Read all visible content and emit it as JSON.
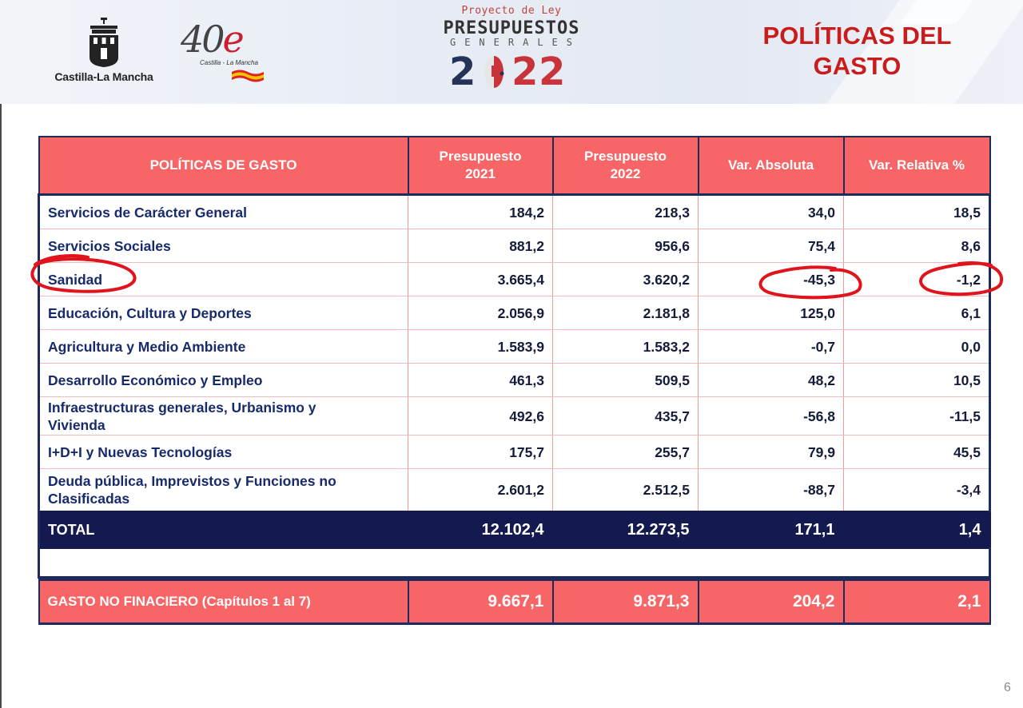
{
  "header": {
    "region_logo_text": "Castilla-La Mancha",
    "anniversary_logo": {
      "number": "40",
      "letter": "e",
      "subtitle": "Castilla - La Mancha"
    },
    "budget_logo": {
      "proyecto": "Proyecto de Ley",
      "title": "PRESUPUESTOS",
      "subtitle": "GENERALES",
      "year_digits": [
        "2",
        "2",
        "2"
      ]
    },
    "page_title_line1": "POLÍTICAS DEL",
    "page_title_line2": "GASTO"
  },
  "table": {
    "headers": {
      "col1": "POLÍTICAS DE GASTO",
      "col2_l1": "Presupuesto",
      "col2_l2": "2021",
      "col3_l1": "Presupuesto",
      "col3_l2": "2022",
      "col4": "Var. Absoluta",
      "col5": "Var. Relativa %"
    },
    "rows": [
      {
        "name": "Servicios de Carácter General",
        "p2021": "184,2",
        "p2022": "218,3",
        "abs": "34,0",
        "rel": "18,5"
      },
      {
        "name": "Servicios Sociales",
        "p2021": "881,2",
        "p2022": "956,6",
        "abs": "75,4",
        "rel": "8,6"
      },
      {
        "name": "Sanidad",
        "p2021": "3.665,4",
        "p2022": "3.620,2",
        "abs": "-45,3",
        "rel": "-1,2"
      },
      {
        "name": "Educación, Cultura y Deportes",
        "p2021": "2.056,9",
        "p2022": "2.181,8",
        "abs": "125,0",
        "rel": "6,1"
      },
      {
        "name": "Agricultura y Medio Ambiente",
        "p2021": "1.583,9",
        "p2022": "1.583,2",
        "abs": "-0,7",
        "rel": "0,0"
      },
      {
        "name": "Desarrollo Económico y Empleo",
        "p2021": "461,3",
        "p2022": "509,5",
        "abs": "48,2",
        "rel": "10,5"
      },
      {
        "name_l1": "Infraestructuras generales, Urbanismo y",
        "name_l2": "Vivienda",
        "p2021": "492,6",
        "p2022": "435,7",
        "abs": "-56,8",
        "rel": "-11,5"
      },
      {
        "name": "I+D+I y Nuevas Tecnologías",
        "p2021": "175,7",
        "p2022": "255,7",
        "abs": "79,9",
        "rel": "45,5"
      },
      {
        "name_l1": "Deuda pública, Imprevistos y Funciones no",
        "name_l2": "Clasificadas",
        "p2021": "2.601,2",
        "p2022": "2.512,5",
        "abs": "-88,7",
        "rel": "-3,4"
      }
    ],
    "total": {
      "label": "TOTAL",
      "p2021": "12.102,4",
      "p2022": "12.273,5",
      "abs": "171,1",
      "rel": "1,4"
    },
    "no_financiero": {
      "label": "GASTO NO FINACIERO (Capítulos 1 al 7)",
      "p2021": "9.667,1",
      "p2022": "9.871,3",
      "abs": "204,2",
      "rel": "2,1"
    }
  },
  "annotations": {
    "color": "#e0141c",
    "circled": [
      "Sanidad",
      "-45,3",
      "-1,2"
    ]
  },
  "colors": {
    "accent_red": "#f76566",
    "navy": "#141a4f",
    "title_red": "#c91c1c"
  },
  "page_number": "6"
}
